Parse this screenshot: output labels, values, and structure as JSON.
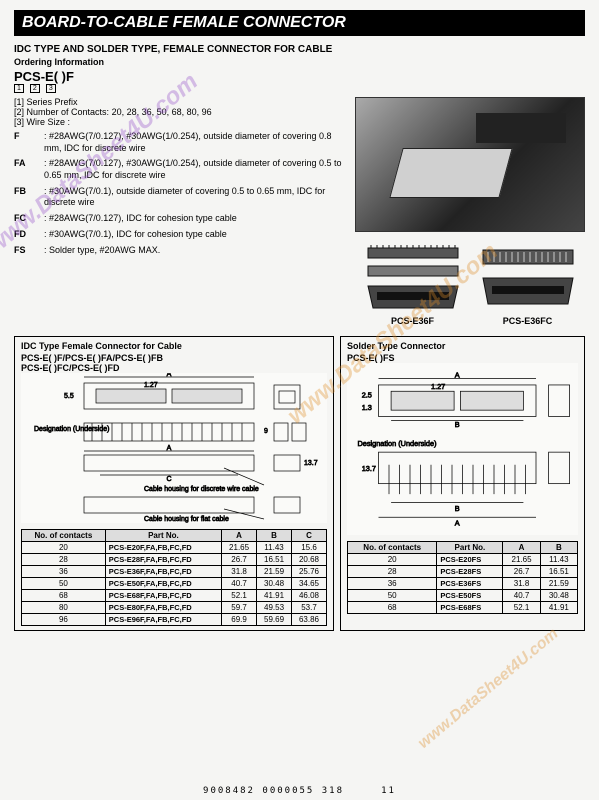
{
  "title": "BOARD-TO-CABLE FEMALE CONNECTOR",
  "subtitle": "IDC TYPE AND SOLDER TYPE, FEMALE CONNECTOR FOR CABLE",
  "ordering": "Ordering Information",
  "partcode": "PCS-E(  )F",
  "prefixes": {
    "n1": "1",
    "n2": "2",
    "n3": "3",
    "line1": "[1] Series Prefix",
    "line2_label": "[2] Number of Contacts:",
    "line2_vals": "20, 28, 36, 50, 68, 80, 96",
    "line3": "[3] Wire Size :"
  },
  "wiresize": [
    {
      "key": "F",
      "val": "#28AWG(7/0.127), #30AWG(1/0.254), outside diameter of covering 0.8 mm, IDC for discrete wire"
    },
    {
      "key": "FA",
      "val": "#28AWG(7/0.127), #30AWG(1/0.254), outside diameter of covering 0.5 to 0.65 mm, IDC for discrete wire"
    },
    {
      "key": "FB",
      "val": "#30AWG(7/0.1), outside diameter of covering 0.5 to 0.65 mm, IDC for discrete wire"
    },
    {
      "key": "FC",
      "val": "#28AWG(7/0.127), IDC for cohesion type cable"
    },
    {
      "key": "FD",
      "val": "#30AWG(7/0.1), IDC for cohesion type cable"
    },
    {
      "key": "FS",
      "val": "Solder type, #20AWG MAX."
    }
  ],
  "conn_labels": {
    "left": "PCS-E36F",
    "right": "PCS-E36FC"
  },
  "diag_left": {
    "title": "IDC Type Female Connector for Cable",
    "sub1": "PCS-E(  )F/PCS-E(  )FA/PCS-E(  )FB",
    "sub2": "PCS-E(  )FC/PCS-E(  )FD",
    "annot1": "Designation (Underside)",
    "annot2": "Cable housing for discrete wire cable",
    "annot3": "Cable housing for flat cable",
    "pitch": "1.27",
    "h1": "5.5",
    "h2": "9",
    "h3": "13.7"
  },
  "diag_right": {
    "title": "Solder Type Connector",
    "sub": "PCS-E(  )FS",
    "annot1": "Designation (Underside)",
    "pitch": "1.27",
    "h1": "2.5",
    "h2": "1.3",
    "h3": "13.7"
  },
  "table_left": {
    "headers": [
      "No. of contacts",
      "Part No.",
      "A",
      "B",
      "C"
    ],
    "rows": [
      [
        "20",
        "PCS-E20F,FA,FB,FC,FD",
        "21.65",
        "11.43",
        "15.6"
      ],
      [
        "28",
        "PCS-E28F,FA,FB,FC,FD",
        "26.7",
        "16.51",
        "20.68"
      ],
      [
        "36",
        "PCS-E36F,FA,FB,FC,FD",
        "31.8",
        "21.59",
        "25.76"
      ],
      [
        "50",
        "PCS-E50F,FA,FB,FC,FD",
        "40.7",
        "30.48",
        "34.65"
      ],
      [
        "68",
        "PCS-E68F,FA,FB,FC,FD",
        "52.1",
        "41.91",
        "46.08"
      ],
      [
        "80",
        "PCS-E80F,FA,FB,FC,FD",
        "59.7",
        "49.53",
        "53.7"
      ],
      [
        "96",
        "PCS-E96F,FA,FB,FC,FD",
        "69.9",
        "59.69",
        "63.86"
      ]
    ]
  },
  "table_right": {
    "headers": [
      "No. of contacts",
      "Part No.",
      "A",
      "B"
    ],
    "rows": [
      [
        "20",
        "PCS-E20FS",
        "21.65",
        "11.43"
      ],
      [
        "28",
        "PCS-E28FS",
        "26.7",
        "16.51"
      ],
      [
        "36",
        "PCS-E36FS",
        "31.8",
        "21.59"
      ],
      [
        "50",
        "PCS-E50FS",
        "40.7",
        "30.48"
      ],
      [
        "68",
        "PCS-E68FS",
        "52.1",
        "41.91"
      ]
    ]
  },
  "footer": {
    "code": "9008482 0000055 318",
    "page": "11"
  },
  "watermark": "www.DataSheet4U.com"
}
